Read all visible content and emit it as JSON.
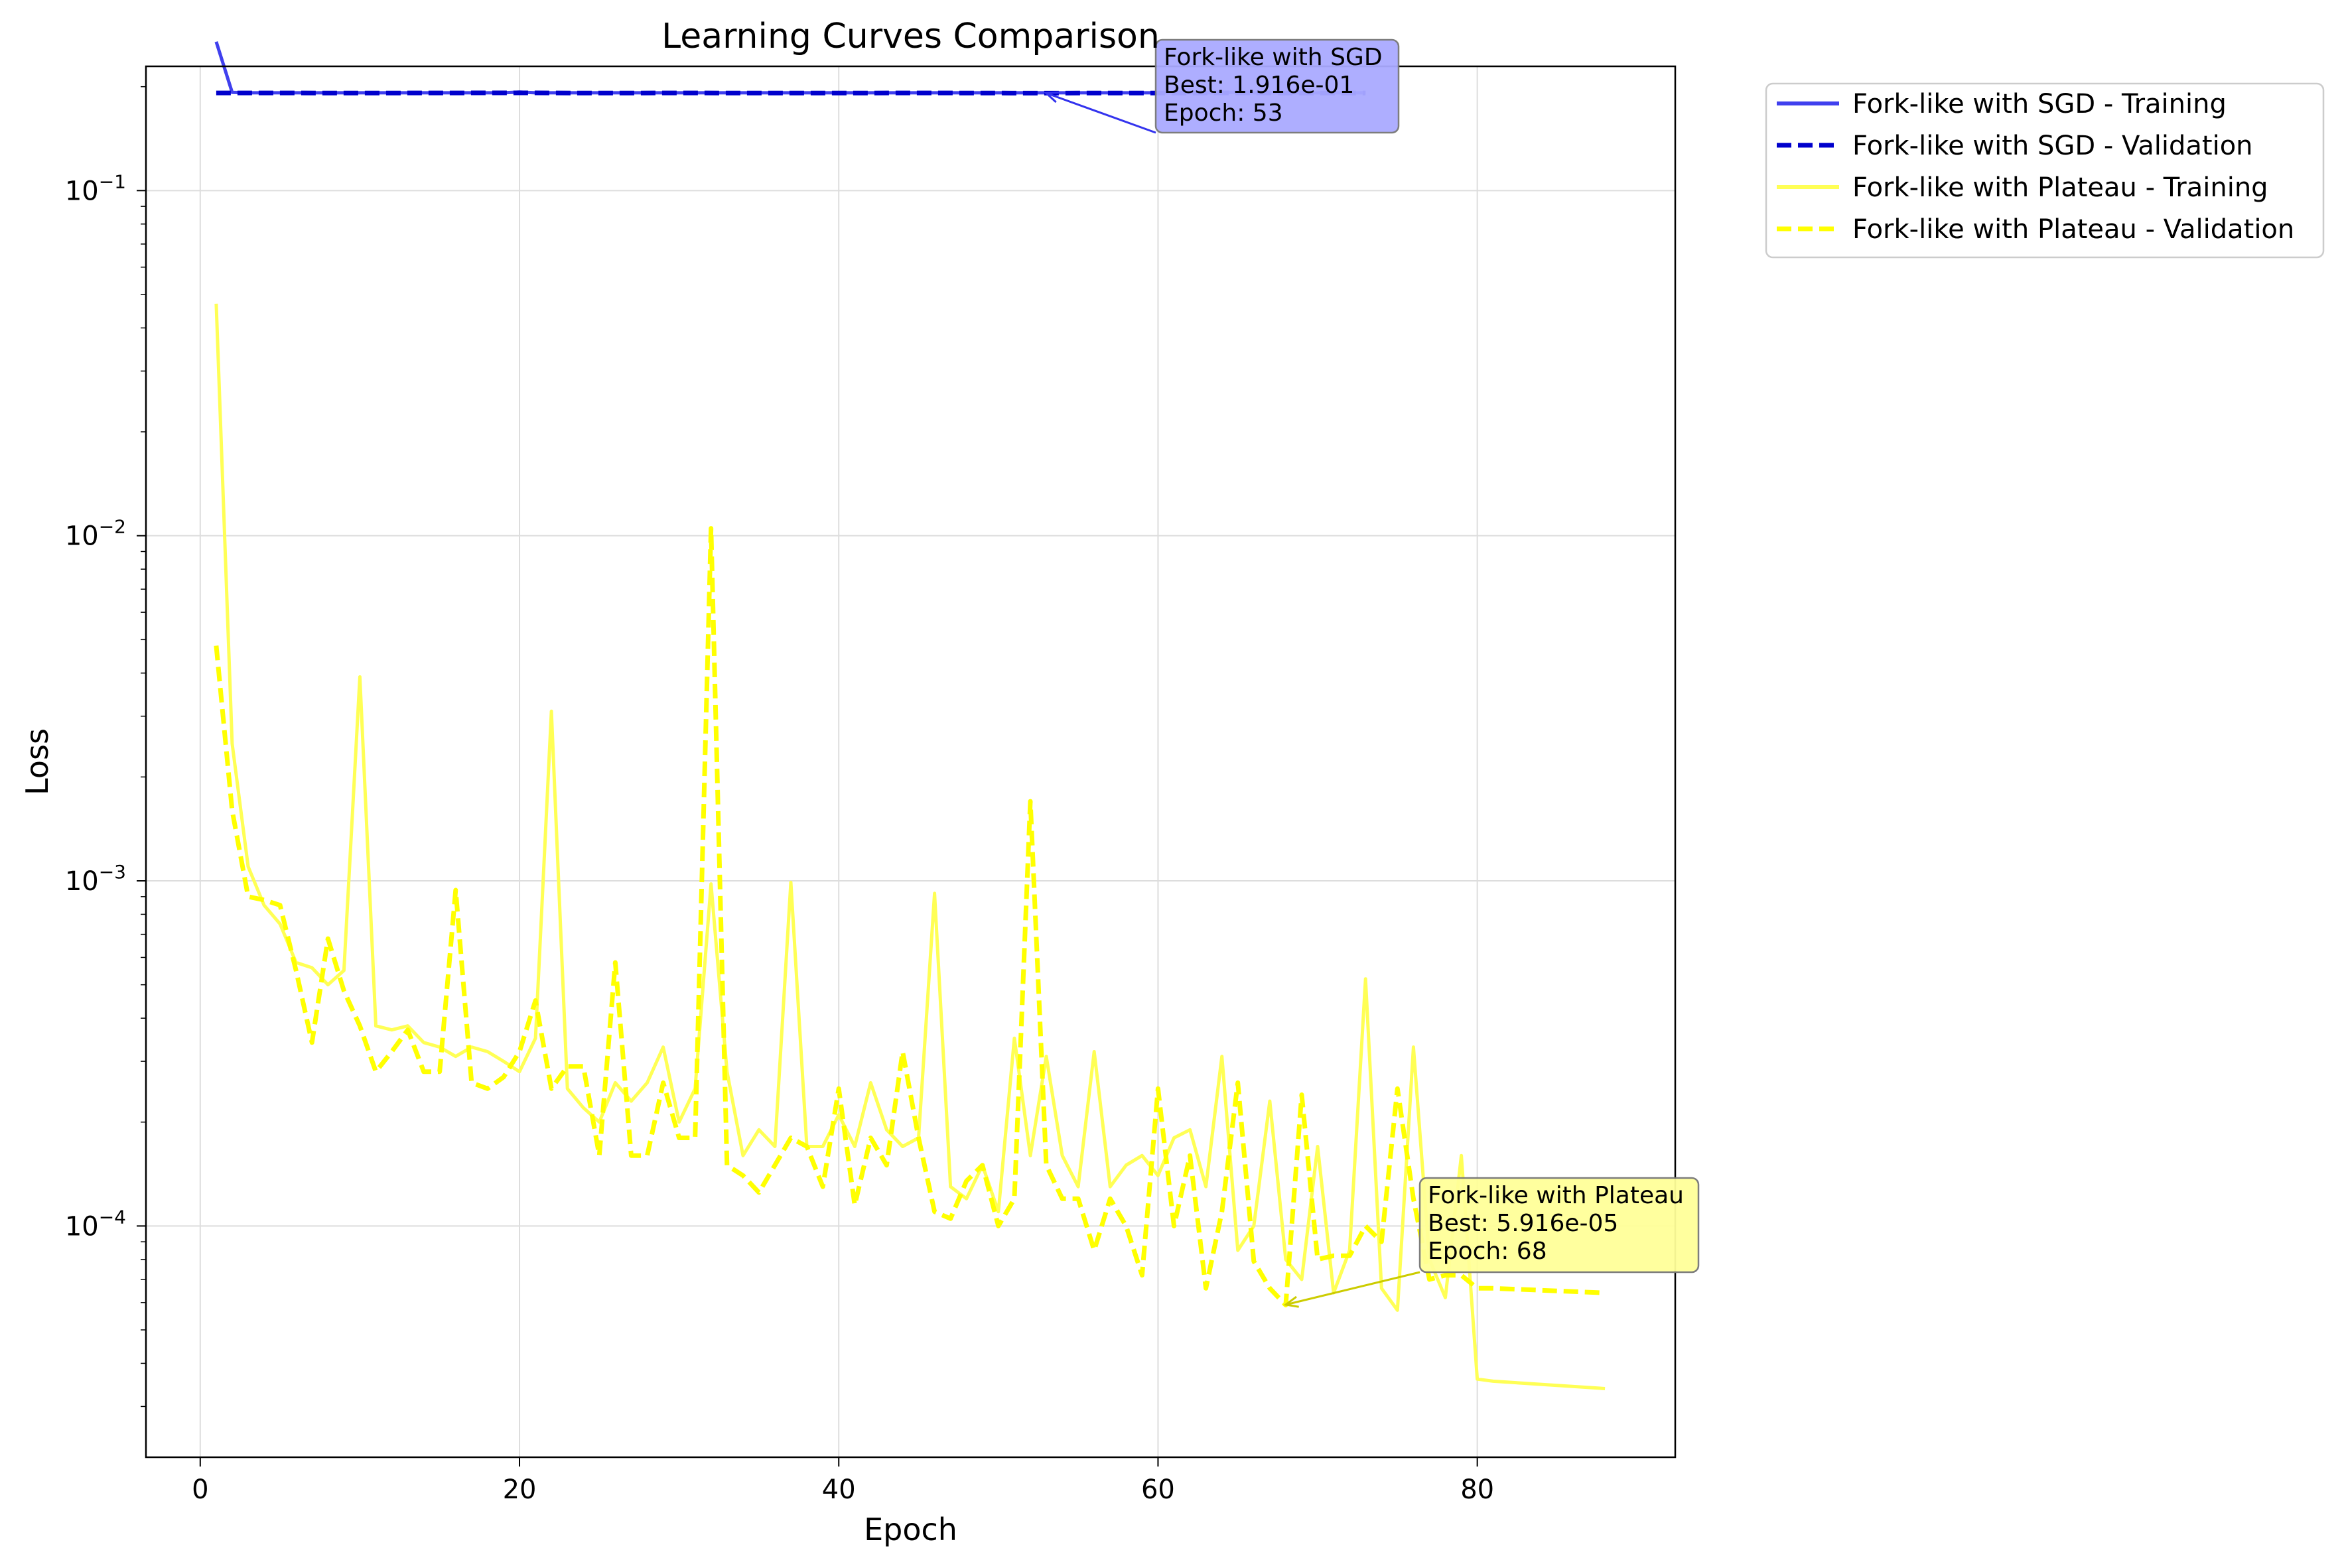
{
  "chart_data": {
    "type": "line",
    "title": "Learning Curves Comparison",
    "xlabel": "Epoch",
    "ylabel": "Loss",
    "xlim": [
      -3.4,
      92.4
    ],
    "ylim_log10": [
      -4.67,
      -0.64
    ],
    "yscale": "log",
    "grid": true,
    "legend_placement": "outside-top-right",
    "x_ticks": [
      {
        "value": 0,
        "label": "0"
      },
      {
        "value": 20,
        "label": "20"
      },
      {
        "value": 40,
        "label": "40"
      },
      {
        "value": 60,
        "label": "60"
      },
      {
        "value": 80,
        "label": "80"
      }
    ],
    "y_ticks": [
      {
        "exp": -1,
        "label": "10",
        "sup": "−1"
      },
      {
        "exp": -2,
        "label": "10",
        "sup": "−2"
      },
      {
        "exp": -3,
        "label": "10",
        "sup": "−3"
      },
      {
        "exp": -4,
        "label": "10",
        "sup": "−4"
      }
    ],
    "series": [
      {
        "name": "Fork-like with SGD - Training",
        "color": "#4040ee",
        "dash": "solid",
        "x": [
          1,
          2,
          3,
          4,
          5,
          6,
          7,
          8,
          9,
          10,
          11,
          12,
          13,
          14,
          15,
          16,
          17,
          18,
          19,
          20,
          21,
          22,
          23,
          24,
          25,
          26,
          27,
          28,
          29,
          30,
          31,
          32,
          33,
          34,
          35,
          36,
          37,
          38,
          39,
          40,
          41,
          42,
          43,
          44,
          45,
          46,
          47,
          48,
          49,
          50,
          51,
          52,
          53,
          54,
          55,
          56,
          57,
          58,
          59,
          60,
          61,
          62,
          63,
          64,
          65,
          66,
          67,
          68,
          69,
          70,
          71,
          72,
          73
        ],
        "y": [
          0.27,
          0.1925,
          0.192,
          0.192,
          0.192,
          0.192,
          0.192,
          0.192,
          0.192,
          0.192,
          0.192,
          0.192,
          0.192,
          0.192,
          0.192,
          0.192,
          0.192,
          0.192,
          0.192,
          0.193,
          0.192,
          0.192,
          0.192,
          0.192,
          0.192,
          0.192,
          0.192,
          0.192,
          0.192,
          0.192,
          0.192,
          0.192,
          0.192,
          0.192,
          0.192,
          0.192,
          0.192,
          0.192,
          0.192,
          0.192,
          0.192,
          0.192,
          0.192,
          0.192,
          0.192,
          0.192,
          0.192,
          0.192,
          0.192,
          0.192,
          0.192,
          0.192,
          0.192,
          0.192,
          0.192,
          0.192,
          0.192,
          0.192,
          0.192,
          0.192,
          0.192,
          0.192,
          0.192,
          0.192,
          0.193,
          0.192,
          0.192,
          0.192,
          0.192,
          0.192,
          0.192,
          0.192,
          0.192
        ]
      },
      {
        "name": "Fork-like with SGD - Validation",
        "color": "#0000cc",
        "dash": "dashed",
        "x": [
          1,
          5,
          10,
          15,
          20,
          25,
          30,
          35,
          40,
          45,
          50,
          53,
          55,
          60,
          65,
          70,
          73
        ],
        "y": [
          0.1918,
          0.1918,
          0.1917,
          0.1918,
          0.1919,
          0.1917,
          0.1918,
          0.1917,
          0.1917,
          0.1918,
          0.1917,
          0.1916,
          0.1917,
          0.1917,
          0.1918,
          0.1917,
          0.1917
        ]
      },
      {
        "name": "Fork-like with Plateau - Training",
        "color": "#ffff55",
        "dash": "solid",
        "x": [
          1,
          2,
          3,
          4,
          5,
          6,
          7,
          8,
          9,
          10,
          11,
          12,
          13,
          14,
          15,
          16,
          17,
          18,
          19,
          20,
          21,
          22,
          23,
          24,
          25,
          26,
          27,
          28,
          29,
          30,
          31,
          32,
          33,
          34,
          35,
          36,
          37,
          38,
          39,
          40,
          41,
          42,
          43,
          44,
          45,
          46,
          47,
          48,
          49,
          50,
          51,
          52,
          53,
          54,
          55,
          56,
          57,
          58,
          59,
          60,
          61,
          62,
          63,
          64,
          65,
          66,
          67,
          68,
          69,
          70,
          71,
          72,
          73,
          74,
          75,
          76,
          77,
          78,
          79,
          80,
          81,
          88
        ],
        "y": [
          0.047,
          0.0025,
          0.0011,
          0.00085,
          0.00075,
          0.00058,
          0.00056,
          0.0005,
          0.00055,
          0.0039,
          0.00038,
          0.00037,
          0.00038,
          0.00034,
          0.00033,
          0.00031,
          0.00033,
          0.00032,
          0.0003,
          0.00028,
          0.00035,
          0.0031,
          0.00025,
          0.00022,
          0.0002,
          0.00026,
          0.00023,
          0.00026,
          0.00033,
          0.0002,
          0.00025,
          0.00098,
          0.00028,
          0.00016,
          0.00019,
          0.00017,
          0.00099,
          0.00017,
          0.00017,
          0.00021,
          0.00017,
          0.00026,
          0.00019,
          0.00017,
          0.00018,
          0.00092,
          0.00013,
          0.00012,
          0.00015,
          0.00011,
          0.00035,
          0.00016,
          0.00031,
          0.00016,
          0.00013,
          0.00032,
          0.00013,
          0.00015,
          0.00016,
          0.00014,
          0.00018,
          0.00019,
          0.00013,
          0.00031,
          8.5e-05,
          0.0001,
          0.00023,
          8e-05,
          7e-05,
          0.00017,
          6.4e-05,
          8.5e-05,
          0.00052,
          6.6e-05,
          5.7e-05,
          0.00033,
          8e-05,
          6.2e-05,
          0.00016,
          3.6e-05,
          3.55e-05,
          3.38e-05
        ]
      },
      {
        "name": "Fork-like with Plateau - Validation",
        "color": "#ffff00",
        "dash": "dashed",
        "x": [
          1,
          2,
          3,
          4,
          5,
          6,
          7,
          8,
          9,
          10,
          11,
          12,
          13,
          14,
          15,
          16,
          17,
          18,
          19,
          20,
          21,
          22,
          23,
          24,
          25,
          26,
          27,
          28,
          29,
          30,
          31,
          32,
          33,
          34,
          35,
          36,
          37,
          38,
          39,
          40,
          41,
          42,
          43,
          44,
          45,
          46,
          47,
          48,
          49,
          50,
          51,
          52,
          53,
          54,
          55,
          56,
          57,
          58,
          59,
          60,
          61,
          62,
          63,
          64,
          65,
          66,
          67,
          68,
          69,
          70,
          71,
          72,
          73,
          74,
          75,
          76,
          77,
          78,
          79,
          80,
          81,
          88
        ],
        "y": [
          0.0048,
          0.0016,
          0.0009,
          0.00088,
          0.00085,
          0.00055,
          0.00034,
          0.00068,
          0.00048,
          0.00038,
          0.00028,
          0.00032,
          0.00037,
          0.00028,
          0.00028,
          0.00094,
          0.00026,
          0.00025,
          0.00027,
          0.00032,
          0.00045,
          0.00025,
          0.00029,
          0.00029,
          0.00016,
          0.00058,
          0.00016,
          0.00016,
          0.00026,
          0.00018,
          0.00018,
          0.0105,
          0.00015,
          0.00014,
          0.000125,
          0.00015,
          0.00018,
          0.00017,
          0.00013,
          0.00025,
          0.000115,
          0.00018,
          0.00015,
          0.00032,
          0.00018,
          0.00011,
          0.000105,
          0.000135,
          0.00015,
          0.0001,
          0.00012,
          0.0017,
          0.00015,
          0.00012,
          0.00012,
          8.5e-05,
          0.00012,
          0.0001,
          7.2e-05,
          0.00025,
          0.0001,
          0.00016,
          6.6e-05,
          0.00011,
          0.00026,
          7.9e-05,
          6.6e-05,
          5.9e-05,
          0.00024,
          8e-05,
          8.2e-05,
          8.2e-05,
          0.0001,
          9e-05,
          0.00025,
          0.00012,
          7e-05,
          7.2e-05,
          7.2e-05,
          6.6e-05,
          6.6e-05,
          6.4e-05
        ]
      }
    ],
    "annotations": [
      {
        "lines": [
          "Fork-like with SGD",
          "Best: 1.916e-01",
          "Epoch: 53"
        ],
        "target_x": 53,
        "target_y": 0.1916,
        "box_color": "#aaaaff",
        "arrow_color": "#3333ee"
      },
      {
        "lines": [
          "Fork-like with Plateau",
          "Best: 5.916e-05",
          "Epoch: 68"
        ],
        "target_x": 68,
        "target_y": 5.916e-05,
        "box_color": "#ffff99",
        "arrow_color": "#cccc00"
      }
    ]
  }
}
